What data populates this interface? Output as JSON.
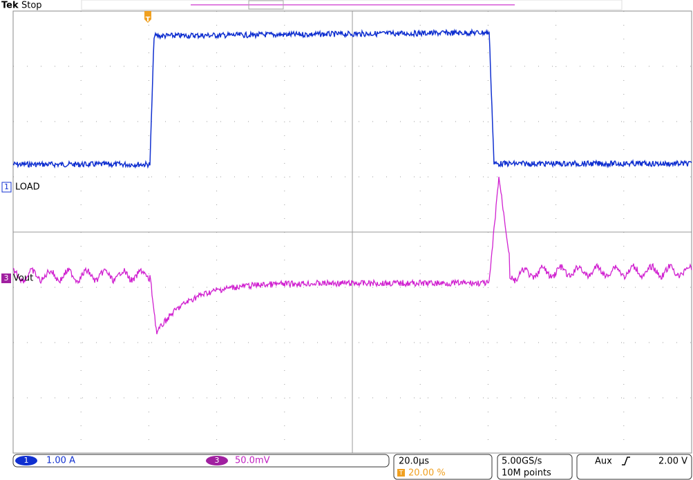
{
  "header": {
    "brand": "Tek",
    "status": "Stop"
  },
  "markers": {
    "trigger": "T",
    "ch1": "1",
    "ch1_label": "LOAD",
    "ch3": "3",
    "ch3_label": "Vout"
  },
  "footer": {
    "ch1": {
      "number": "1",
      "scale": "1.00 A"
    },
    "ch3": {
      "number": "3",
      "scale": "50.0mV"
    },
    "timebase": "20.0µs",
    "trigger_position": "20.00 %",
    "sample_rate": "5.00GS/s",
    "record_length": "10M points",
    "trigger": {
      "source": "Aux",
      "level": "2.00 V"
    }
  }
}
